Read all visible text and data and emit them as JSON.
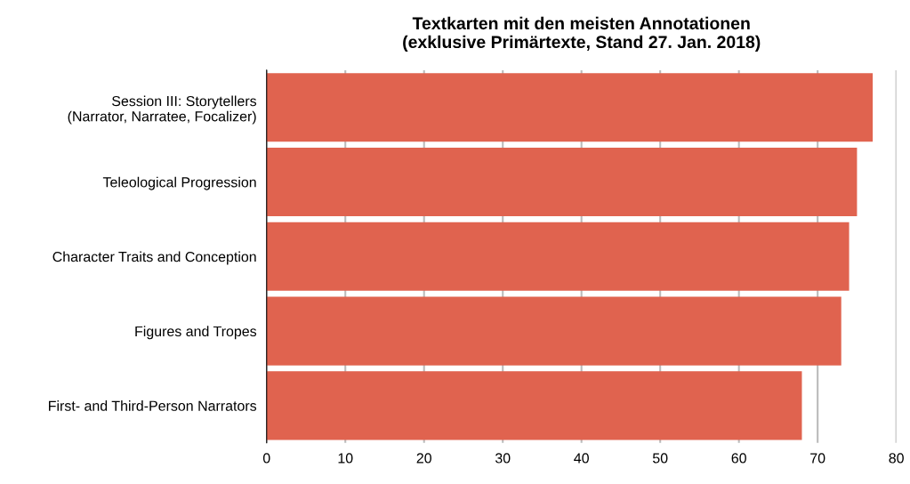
{
  "chart_data": {
    "type": "bar",
    "orientation": "horizontal",
    "title": "Textkarten mit den meisten Annotationen\n(exklusive Primärtexte, Stand 27. Jan. 2018)",
    "categories": [
      "Session III: Storytellers\n(Narrator, Narratee, Focalizer)",
      "Teleological Progression",
      "Character Traits and Conception",
      "Figures and Tropes",
      "First- and Third-Person Narrators"
    ],
    "values": [
      77,
      75,
      74,
      73,
      68
    ],
    "color": "#e0634f",
    "xlim": [
      0,
      80
    ],
    "xticks": [
      0,
      10,
      20,
      30,
      40,
      50,
      60,
      70,
      80
    ],
    "grid": "x",
    "legend": false
  }
}
